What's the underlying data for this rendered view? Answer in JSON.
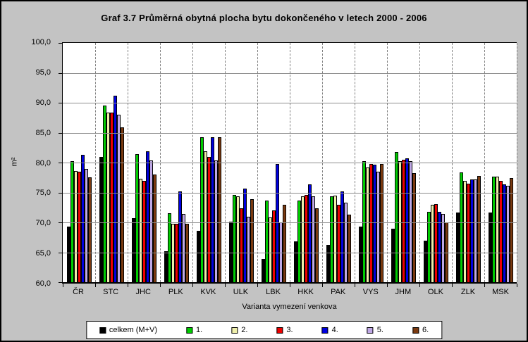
{
  "colors": {
    "background": "#C3C3C3",
    "plot_background": "#FFFFFF",
    "gridline": "#808080",
    "axis": "#000000",
    "legend_background": "#FFFFFF"
  },
  "chart_data": {
    "type": "bar",
    "title": "Graf 3.7 Průměrná obytná plocha bytu dokončeného v letech 2000 - 2006",
    "xlabel": "Varianta vymezení venkova",
    "ylabel": "m²",
    "ylim": [
      60.0,
      100.0
    ],
    "y_tick_step": 5.0,
    "y_tick_labels": [
      "100,0",
      "95,0",
      "90,0",
      "85,0",
      "80,0",
      "75,0",
      "70,0",
      "65,0",
      "60,0"
    ],
    "grid": {
      "horizontal": "solid",
      "vertical": "dashed"
    },
    "legend_position": "bottom",
    "categories": [
      "ČR",
      "STC",
      "JHC",
      "PLK",
      "KVK",
      "ULK",
      "LBK",
      "HKK",
      "PAK",
      "VYS",
      "JHM",
      "OLK",
      "ZLK",
      "MSK"
    ],
    "series": [
      {
        "name": "celkem (M+V)",
        "color": "#000000",
        "values": [
          69.3,
          81.0,
          70.7,
          65.2,
          68.6,
          70.1,
          63.9,
          66.8,
          66.2,
          69.3,
          69.0,
          67.0,
          71.6,
          71.6
        ]
      },
      {
        "name": "1.",
        "color": "#00CC00",
        "values": [
          80.2,
          89.5,
          81.4,
          71.5,
          84.2,
          74.6,
          73.7,
          73.7,
          74.3,
          80.2,
          81.8,
          71.8,
          78.3,
          77.6
        ]
      },
      {
        "name": "2.",
        "color": "#EEEEAA",
        "values": [
          78.6,
          88.4,
          77.3,
          69.8,
          81.9,
          74.4,
          70.8,
          74.4,
          74.5,
          79.2,
          80.2,
          72.9,
          76.9,
          77.7
        ]
      },
      {
        "name": "3.",
        "color": "#EE0000",
        "values": [
          78.5,
          88.3,
          76.9,
          69.8,
          80.9,
          72.4,
          72.0,
          74.6,
          73.0,
          79.8,
          80.5,
          73.1,
          76.5,
          77.0
        ]
      },
      {
        "name": "4.",
        "color": "#0000E0",
        "values": [
          81.3,
          91.2,
          81.9,
          75.2,
          84.2,
          75.7,
          79.8,
          76.3,
          75.2,
          79.6,
          80.7,
          71.8,
          77.2,
          76.4
        ]
      },
      {
        "name": "5.",
        "color": "#BFA8E6",
        "values": [
          79.0,
          88.0,
          80.3,
          71.4,
          80.4,
          70.9,
          70.0,
          74.3,
          73.3,
          78.5,
          80.2,
          71.4,
          77.2,
          76.1
        ]
      },
      {
        "name": "6.",
        "color": "#7B3A10",
        "values": [
          77.5,
          85.9,
          78.0,
          69.8,
          84.2,
          73.9,
          73.0,
          72.4,
          71.3,
          79.8,
          78.2,
          70.0,
          77.8,
          77.4
        ]
      }
    ]
  }
}
